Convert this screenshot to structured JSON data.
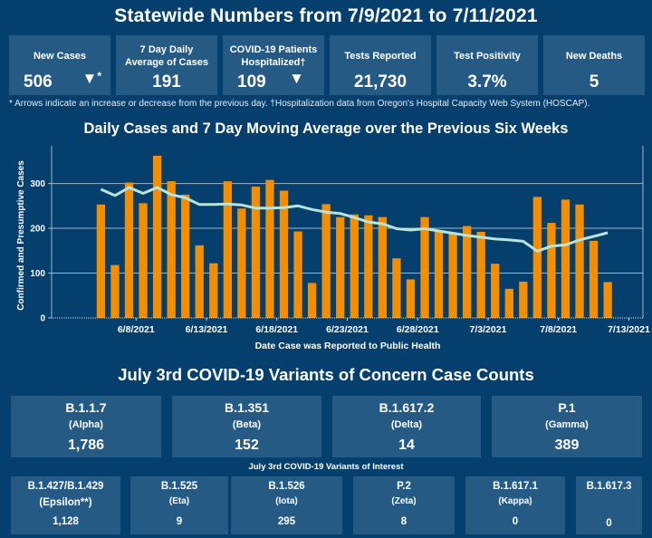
{
  "header": {
    "title": "Statewide Numbers from 7/9/2021 to 7/11/2021"
  },
  "kpis": [
    {
      "label": "New Cases",
      "value": "506",
      "arrow": "▼",
      "arrow_suffix": "*",
      "arrow_icon": "triangle-down-icon"
    },
    {
      "label": "7 Day Daily Average of Cases",
      "value": "191"
    },
    {
      "label": "COVID-19 Patients Hospitalized†",
      "value": "109",
      "arrow": "▼",
      "arrow_icon": "triangle-down-icon"
    },
    {
      "label": "Tests Reported",
      "value": "21,730"
    },
    {
      "label": "Test Positivity",
      "value": "3.7%"
    },
    {
      "label": "New Deaths",
      "value": "5"
    }
  ],
  "footnote": "* Arrows indicate an increase or decrease from the previous day. †Hospitalization data from Oregon's Hospital Capacity Web System (HOSCAP).",
  "chart_title": "Daily Cases and 7 Day Moving Average over the Previous Six Weeks",
  "colors": {
    "background": "#043f6e",
    "card": "#255a85",
    "bar": "#f28e00",
    "line": "#b8e4da"
  },
  "chart_data": {
    "type": "bar",
    "title": "Daily Cases and 7 Day Moving Average over the Previous Six Weeks",
    "xlabel": "Date Case was Reported to Public Health",
    "ylabel": "Confirmed and Presumptive Cases",
    "ylim": [
      0,
      380
    ],
    "yticks": [
      0,
      100,
      200,
      300
    ],
    "grid": true,
    "x_start": "6/5/2021",
    "x_ticks": [
      {
        "label": "6/8/2021",
        "day": 3
      },
      {
        "label": "6/13/2021",
        "day": 8
      },
      {
        "label": "6/18/2021",
        "day": 13
      },
      {
        "label": "6/23/2021",
        "day": 18
      },
      {
        "label": "6/28/2021",
        "day": 23
      },
      {
        "label": "7/3/2021",
        "day": 28
      },
      {
        "label": "7/8/2021",
        "day": 33
      },
      {
        "label": "7/13/2021",
        "day": 38
      }
    ],
    "x_range_days": [
      -3,
      39
    ],
    "series": [
      {
        "name": "Daily Cases",
        "type": "bar",
        "values": [
          253,
          118,
          302,
          256,
          362,
          305,
          275,
          162,
          122,
          305,
          244,
          293,
          308,
          284,
          193,
          78,
          254,
          225,
          231,
          229,
          225,
          133,
          86,
          225,
          193,
          191,
          205,
          192,
          121,
          65,
          81,
          270,
          212,
          264,
          253,
          172,
          80
        ]
      },
      {
        "name": "7 Day Moving Average",
        "type": "line",
        "values": [
          287,
          273,
          291,
          278,
          291,
          275,
          268,
          253,
          253,
          254,
          252,
          245,
          245,
          246,
          250,
          242,
          236,
          233,
          224,
          214,
          210,
          199,
          196,
          199,
          194,
          189,
          184,
          180,
          176,
          174,
          171,
          149,
          160,
          163,
          174,
          182,
          190
        ]
      }
    ]
  },
  "variants_title": "July 3rd  COVID-19 Variants of Concern Case Counts",
  "variants_concern": [
    {
      "name": "B.1.1.7",
      "greek": "(Alpha)",
      "count": "1,786"
    },
    {
      "name": "B.1.351",
      "greek": "(Beta)",
      "count": "152"
    },
    {
      "name": "B.1.617.2",
      "greek": "(Delta)",
      "count": "14"
    },
    {
      "name": "P.1",
      "greek": "(Gamma)",
      "count": "389"
    }
  ],
  "interest_title": "July 3rd COVID-19 Variants of Interest",
  "variants_interest": [
    {
      "name": "B.1.427/B.1.429",
      "greek": "(Epsilon**)",
      "count": "1,128"
    },
    {
      "name": "B.1.525",
      "greek": "(Eta)",
      "count": "9"
    },
    {
      "name": "B.1.526",
      "greek": "(Iota)",
      "count": "295"
    },
    {
      "name": "P.2",
      "greek": "(Zeta)",
      "count": "8"
    },
    {
      "name": "B.1.617.1",
      "greek": "(Kappa)",
      "count": "0"
    },
    {
      "name": "B.1.617.3",
      "greek": "",
      "count": "0"
    }
  ]
}
